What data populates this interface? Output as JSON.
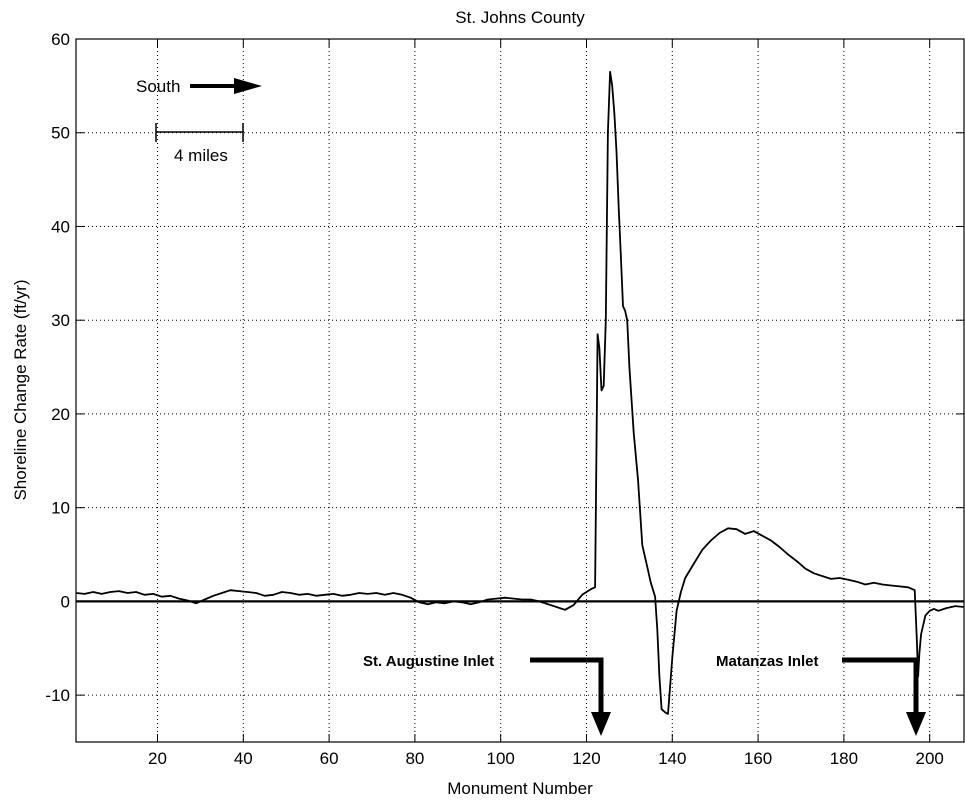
{
  "chart_data": {
    "type": "line",
    "title": "St. Johns County",
    "xlabel": "Monument Number",
    "ylabel": "Shoreline Change Rate (ft/yr)",
    "xlim": [
      1,
      208
    ],
    "ylim": [
      -15,
      60
    ],
    "xticks": [
      20,
      40,
      60,
      80,
      100,
      120,
      140,
      160,
      180,
      200
    ],
    "yticks": [
      -10,
      0,
      10,
      20,
      30,
      40,
      50,
      60
    ],
    "grid": true,
    "zero_line": true,
    "series": [
      {
        "name": "",
        "x": [
          1,
          3,
          5,
          7,
          9,
          11,
          13,
          15,
          17,
          19,
          21,
          23,
          25,
          27,
          29,
          31,
          33,
          35,
          37,
          39,
          41,
          43,
          45,
          47,
          49,
          51,
          53,
          55,
          57,
          59,
          61,
          63,
          65,
          67,
          69,
          71,
          73,
          75,
          77,
          79,
          81,
          83,
          85,
          87,
          89,
          91,
          93,
          95,
          97,
          99,
          101,
          103,
          105,
          107,
          109,
          111,
          113,
          115,
          117,
          119,
          121,
          122,
          122.6,
          123,
          123.5,
          124,
          124.5,
          125,
          125.5,
          126,
          126.5,
          127,
          127.5,
          128,
          128.5,
          129,
          129.5,
          130,
          131,
          132,
          133,
          134,
          135,
          136,
          136.5,
          137,
          137.5,
          138,
          138.5,
          139,
          140,
          141,
          142,
          143,
          145,
          147,
          149,
          151,
          153,
          155,
          157,
          159,
          161,
          163,
          165,
          167,
          169,
          171,
          173,
          175,
          177,
          179,
          181,
          183,
          185,
          187,
          189,
          191,
          193,
          195,
          196.5,
          197,
          197.3,
          197.6,
          198,
          199,
          200,
          201,
          202,
          204,
          206,
          208
        ],
        "values": [
          0.9,
          0.8,
          1.0,
          0.8,
          1.0,
          1.1,
          0.9,
          1.0,
          0.7,
          0.8,
          0.5,
          0.6,
          0.3,
          0.1,
          -0.2,
          0.2,
          0.6,
          0.9,
          1.2,
          1.1,
          1.0,
          0.9,
          0.6,
          0.7,
          1.0,
          0.9,
          0.7,
          0.8,
          0.6,
          0.7,
          0.8,
          0.6,
          0.7,
          0.9,
          0.8,
          0.9,
          0.7,
          0.9,
          0.7,
          0.4,
          -0.1,
          -0.3,
          -0.1,
          -0.2,
          0.0,
          -0.1,
          -0.3,
          -0.1,
          0.2,
          0.3,
          0.4,
          0.3,
          0.2,
          0.2,
          0.0,
          -0.3,
          -0.6,
          -0.9,
          -0.4,
          0.7,
          1.3,
          1.5,
          28.5,
          27.0,
          22.5,
          23.0,
          30.0,
          50.0,
          56.5,
          55.0,
          52.0,
          48.0,
          42.0,
          37.0,
          31.5,
          31.0,
          30.0,
          25.0,
          18.0,
          13.0,
          6.0,
          4.0,
          2.0,
          0.5,
          -3.0,
          -8.0,
          -11.5,
          -11.7,
          -11.9,
          -12.0,
          -6.0,
          -1.0,
          1.0,
          2.5,
          4.0,
          5.5,
          6.5,
          7.3,
          7.8,
          7.7,
          7.2,
          7.5,
          7.0,
          6.5,
          5.8,
          5.0,
          4.3,
          3.5,
          3.0,
          2.7,
          2.4,
          2.5,
          2.3,
          2.1,
          1.8,
          2.0,
          1.8,
          1.7,
          1.6,
          1.5,
          1.2,
          -4.0,
          -8.0,
          -5.5,
          -3.5,
          -1.5,
          -1.0,
          -0.8,
          -1.0,
          -0.7,
          -0.5,
          -0.6
        ]
      }
    ],
    "annotations": {
      "south_label": "South",
      "scale_label": "4 miles",
      "inlet_1_label": "St. Augustine Inlet",
      "inlet_2_label": "Matanzas Inlet"
    }
  }
}
